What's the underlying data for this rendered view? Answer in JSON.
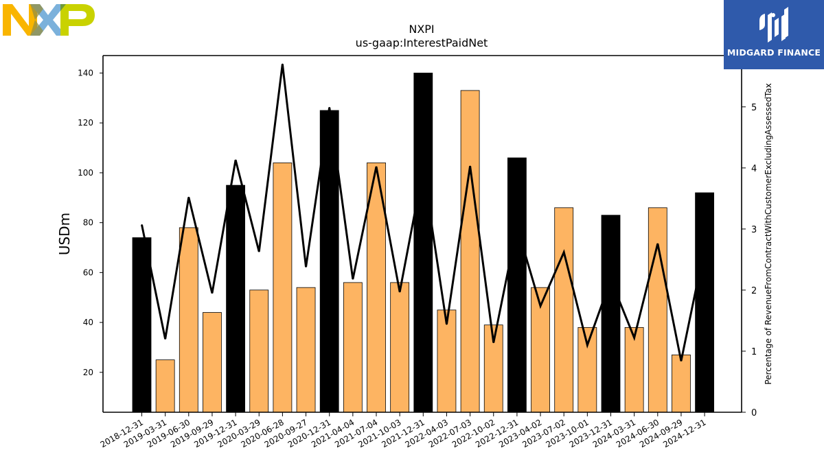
{
  "logo_left": {
    "text": "NXP"
  },
  "logo_right": {
    "text": "MIDGARD FINANCE"
  },
  "chart_data": {
    "type": "bar",
    "title": "NXPI",
    "subtitle": "us-gaap:InterestPaidNet",
    "ylabel": "USDm",
    "y2label": "Percentage of RevenueFromContractWithCustomerExcludingAssessedTax",
    "ylim": [
      4,
      147
    ],
    "y2lim": [
      0,
      5.84
    ],
    "yticks": [
      20,
      40,
      60,
      80,
      100,
      120,
      140
    ],
    "y2ticks": [
      0,
      1,
      2,
      3,
      4,
      5
    ],
    "categories": [
      "2018-12-31",
      "2019-03-31",
      "2019-06-30",
      "2019-09-29",
      "2019-12-31",
      "2020-03-29",
      "2020-06-28",
      "2020-09-27",
      "2020-12-31",
      "2021-04-04",
      "2021-07-04",
      "2021-10-03",
      "2021-12-31",
      "2022-04-03",
      "2022-07-03",
      "2022-10-02",
      "2022-12-31",
      "2023-04-02",
      "2023-07-02",
      "2023-10-01",
      "2023-12-31",
      "2024-03-31",
      "2024-06-30",
      "2024-09-29",
      "2024-12-31"
    ],
    "series": [
      {
        "values": [
          74,
          25,
          78,
          44,
          95,
          53,
          104,
          54,
          125,
          56,
          104,
          56,
          140,
          45,
          133,
          39,
          106,
          54,
          86,
          38,
          83,
          38,
          86,
          27,
          92
        ],
        "colors": [
          "#000000",
          "#fdb462",
          "#fdb462",
          "#fdb462",
          "#000000",
          "#fdb462",
          "#fdb462",
          "#fdb462",
          "#000000",
          "#fdb462",
          "#fdb462",
          "#fdb462",
          "#000000",
          "#fdb462",
          "#fdb462",
          "#fdb462",
          "#000000",
          "#fdb462",
          "#fdb462",
          "#fdb462",
          "#000000",
          "#fdb462",
          "#fdb462",
          "#fdb462",
          "#000000"
        ]
      },
      {
        "type": "line",
        "axis": "right",
        "color": "#000000",
        "values": [
          3.07,
          1.2,
          3.52,
          1.95,
          4.13,
          2.63,
          5.7,
          2.38,
          4.99,
          2.18,
          4.02,
          1.97,
          3.99,
          1.44,
          4.03,
          1.14,
          3.04,
          1.74,
          2.62,
          1.1,
          2.17,
          1.22,
          2.76,
          0.84,
          2.7
        ]
      }
    ],
    "grid": false,
    "legend": "none"
  }
}
